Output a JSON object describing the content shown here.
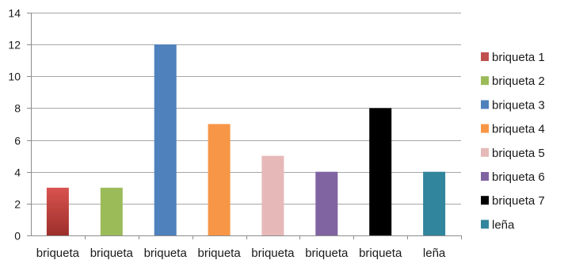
{
  "chart_data": {
    "type": "bar",
    "categories": [
      "briqueta",
      "briqueta",
      "briqueta",
      "briqueta",
      "briqueta",
      "briqueta",
      "briqueta",
      "leña"
    ],
    "values": [
      3,
      3,
      12,
      7,
      5,
      4,
      8,
      4
    ],
    "colors": [
      "#c0504d",
      "#9bbb59",
      "#4f81bd",
      "#f79646",
      "#e6b9b8",
      "#8064a2",
      "#000000",
      "#31859c"
    ],
    "legend": [
      "briqueta 1",
      "briqueta 2",
      "briqueta 3",
      "briqueta 4",
      "briqueta 5",
      "briqueta 6",
      "briqueta 7",
      "leña"
    ],
    "ylim": [
      0,
      14
    ],
    "yticks": [
      0,
      2,
      4,
      6,
      8,
      10,
      12,
      14
    ],
    "grid": true,
    "legend_position": "right"
  }
}
